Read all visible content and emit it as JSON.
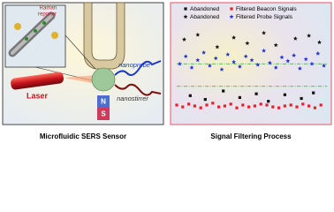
{
  "diagram": {
    "inset_label": [
      "Raman",
      "reporter"
    ],
    "laser": "Laser",
    "nanoprobe": "nanoprobe",
    "nanostirrer": "nanostirrer",
    "magnet_north": "N",
    "magnet_south": "S",
    "caption": "Microfluidic SERS Sensor"
  },
  "chart_data": {
    "type": "scatter",
    "caption": "Signal Filtering Process",
    "xlim": [
      0,
      100
    ],
    "ylim": [
      0,
      100
    ],
    "thresholds": [
      62,
      38
    ],
    "threshold_color": "#33aa33",
    "series": [
      {
        "name": "Abandoned",
        "marker": "square",
        "color": "#111111",
        "x": [
          9,
          19,
          31,
          42,
          53,
          61,
          72,
          83,
          91
        ],
        "values": [
          28,
          24,
          33,
          26,
          30,
          22,
          29,
          25,
          31
        ]
      },
      {
        "name": "Filtered Beacon Signals",
        "marker": "square",
        "color": "#e8202a",
        "x": [
          0,
          4,
          8,
          12,
          16,
          20,
          24,
          28,
          32,
          36,
          40,
          44,
          48,
          52,
          56,
          60,
          64,
          68,
          72,
          76,
          80,
          84,
          88,
          92,
          96
        ],
        "values": [
          18,
          16,
          19,
          17,
          15,
          18,
          20,
          16,
          17,
          19,
          15,
          18,
          16,
          17,
          19,
          18,
          16,
          15,
          17,
          18,
          16,
          19,
          17,
          15,
          18
        ]
      },
      {
        "name": "Abandoned",
        "marker": "star",
        "color": "#111111",
        "x": [
          5,
          14,
          27,
          38,
          47,
          58,
          66,
          79,
          88,
          95
        ],
        "values": [
          88,
          93,
          80,
          90,
          84,
          95,
          82,
          89,
          92,
          85
        ]
      },
      {
        "name": "Filtered Probe Signals",
        "marker": "star",
        "color": "#2233cc",
        "x": [
          2,
          6,
          10,
          14,
          18,
          22,
          26,
          30,
          34,
          38,
          42,
          46,
          50,
          54,
          58,
          62,
          66,
          70,
          74,
          78,
          82,
          86,
          90,
          94,
          98
        ],
        "values": [
          62,
          70,
          58,
          66,
          74,
          60,
          68,
          56,
          72,
          64,
          59,
          70,
          66,
          61,
          76,
          63,
          58,
          69,
          65,
          71,
          57,
          67,
          62,
          73,
          60
        ]
      }
    ]
  }
}
